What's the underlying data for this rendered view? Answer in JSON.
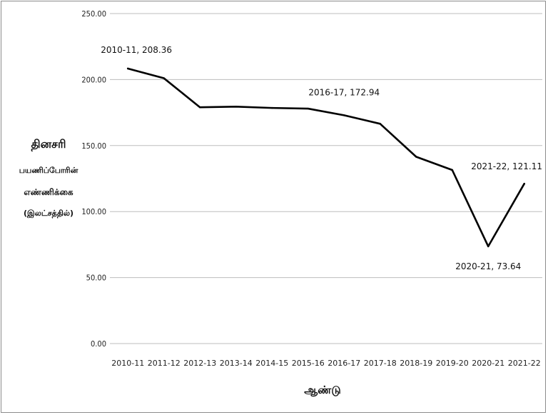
{
  "chart_data": {
    "type": "line",
    "title": "",
    "xlabel": "ஆண்டு",
    "ylabel_lines": [
      "தினசரி",
      "பயணிப்போரின்",
      "எண்ணிக்கை",
      "(இலட்சத்தில்)"
    ],
    "categories": [
      "2010-11",
      "2011-12",
      "2012-13",
      "2013-14",
      "2014-15",
      "2015-16",
      "2016-17",
      "2017-18",
      "2018-19",
      "2019-20",
      "2020-21",
      "2021-22"
    ],
    "series": [
      {
        "values": [
          208.36,
          201.0,
          179.0,
          179.5,
          178.5,
          178.0,
          172.94,
          166.5,
          141.5,
          131.5,
          73.64,
          121.11
        ]
      }
    ],
    "ylim": [
      0,
      250
    ],
    "yticks": [
      "0.00",
      "50.00",
      "100.00",
      "150.00",
      "200.00",
      "250.00"
    ],
    "grid": true,
    "line_color": "#000000",
    "annotations": [
      {
        "text": "2010-11, 208.36",
        "index": 0,
        "pos": "above"
      },
      {
        "text": "2016-17, 172.94",
        "index": 6,
        "pos": "above"
      },
      {
        "text": "2020-21, 73.64",
        "index": 10,
        "pos": "below"
      },
      {
        "text": "2021-22, 121.11",
        "index": 11,
        "pos": "above"
      }
    ]
  }
}
